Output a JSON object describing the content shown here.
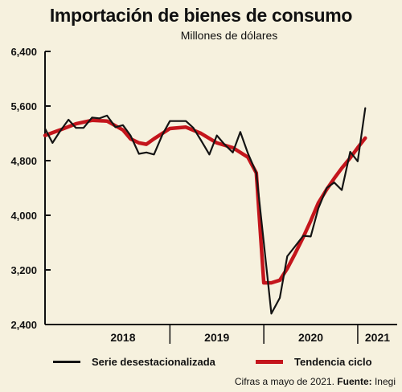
{
  "title": "Importación de bienes de consumo",
  "subtitle": "Millones de dólares",
  "footer": {
    "note": "Cifras a mayo de 2021.",
    "source_label": "Fuente:",
    "source": "Inegi"
  },
  "colors": {
    "background": "#f6f1de",
    "series_raw": "#141414",
    "series_trend": "#c4151c"
  },
  "chart_data": {
    "type": "line",
    "ylim": [
      2400,
      6400
    ],
    "yticks": [
      2400,
      3200,
      4000,
      4800,
      5600,
      6400
    ],
    "ytick_labels": [
      "2,400",
      "3,200",
      "4,000",
      "4,800",
      "5,600",
      "6,400"
    ],
    "xlim": [
      2017.67,
      2021.42
    ],
    "xtick_labels": [
      {
        "label": "2018",
        "center": 2018.5
      },
      {
        "label": "2019",
        "center": 2019.5
      },
      {
        "label": "2020",
        "center": 2020.5
      },
      {
        "label": "2021",
        "center": 2021.21
      }
    ],
    "year_boundaries": [
      2019.0,
      2020.0,
      2021.0
    ],
    "grid": false,
    "legend_position": "bottom",
    "series": [
      {
        "name": "Serie desestacionalizada",
        "color": "#141414",
        "points": [
          [
            2017.67,
            5270
          ],
          [
            2017.75,
            5060
          ],
          [
            2017.83,
            5230
          ],
          [
            2017.92,
            5400
          ],
          [
            2018.0,
            5280
          ],
          [
            2018.08,
            5280
          ],
          [
            2018.17,
            5430
          ],
          [
            2018.25,
            5420
          ],
          [
            2018.33,
            5460
          ],
          [
            2018.42,
            5290
          ],
          [
            2018.5,
            5320
          ],
          [
            2018.58,
            5170
          ],
          [
            2018.67,
            4900
          ],
          [
            2018.75,
            4920
          ],
          [
            2018.83,
            4890
          ],
          [
            2018.92,
            5180
          ],
          [
            2019.0,
            5380
          ],
          [
            2019.08,
            5380
          ],
          [
            2019.17,
            5380
          ],
          [
            2019.25,
            5280
          ],
          [
            2019.33,
            5100
          ],
          [
            2019.42,
            4890
          ],
          [
            2019.5,
            5170
          ],
          [
            2019.58,
            5040
          ],
          [
            2019.67,
            4920
          ],
          [
            2019.75,
            5220
          ],
          [
            2019.83,
            4910
          ],
          [
            2019.92,
            4620
          ],
          [
            2020.0,
            3600
          ],
          [
            2020.08,
            2560
          ],
          [
            2020.17,
            2790
          ],
          [
            2020.25,
            3400
          ],
          [
            2020.33,
            3540
          ],
          [
            2020.42,
            3700
          ],
          [
            2020.5,
            3690
          ],
          [
            2020.58,
            4100
          ],
          [
            2020.67,
            4400
          ],
          [
            2020.75,
            4480
          ],
          [
            2020.83,
            4370
          ],
          [
            2020.92,
            4930
          ],
          [
            2021.0,
            4790
          ],
          [
            2021.08,
            5570
          ]
        ]
      },
      {
        "name": "Tendencia ciclo",
        "color": "#c4151c",
        "points": [
          [
            2017.67,
            5170
          ],
          [
            2017.83,
            5250
          ],
          [
            2018.0,
            5340
          ],
          [
            2018.17,
            5390
          ],
          [
            2018.33,
            5380
          ],
          [
            2018.5,
            5250
          ],
          [
            2018.58,
            5120
          ],
          [
            2018.67,
            5060
          ],
          [
            2018.75,
            5040
          ],
          [
            2018.83,
            5120
          ],
          [
            2019.0,
            5270
          ],
          [
            2019.17,
            5290
          ],
          [
            2019.33,
            5200
          ],
          [
            2019.5,
            5060
          ],
          [
            2019.67,
            4990
          ],
          [
            2019.83,
            4850
          ],
          [
            2019.92,
            4620
          ],
          [
            2020.0,
            3010
          ],
          [
            2020.08,
            3010
          ],
          [
            2020.17,
            3050
          ],
          [
            2020.25,
            3220
          ],
          [
            2020.33,
            3430
          ],
          [
            2020.42,
            3680
          ],
          [
            2020.5,
            3920
          ],
          [
            2020.58,
            4180
          ],
          [
            2020.67,
            4380
          ],
          [
            2020.75,
            4540
          ],
          [
            2020.83,
            4690
          ],
          [
            2020.92,
            4840
          ],
          [
            2021.0,
            4990
          ],
          [
            2021.08,
            5130
          ]
        ]
      }
    ]
  }
}
